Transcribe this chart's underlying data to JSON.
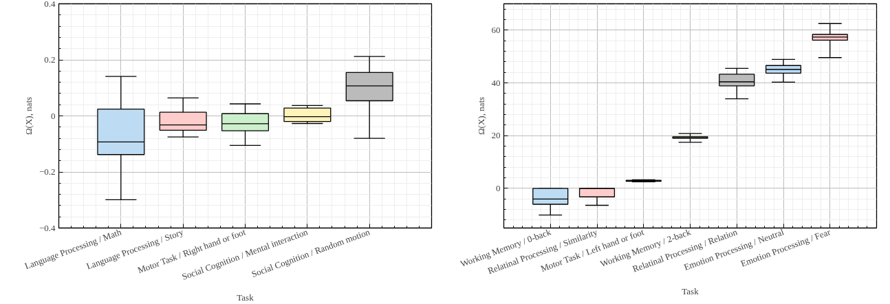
{
  "chart_data": [
    {
      "type": "box",
      "xlabel": "Task",
      "ylabel": "Ω(X), nats",
      "grid": true,
      "categories": [
        "Language Processing / Math",
        "Language Processing / Story",
        "Motor Task / Right hand or foot",
        "Social Cognition / Mental interaction",
        "Social Cognition / Random motion"
      ],
      "colors": [
        "#bddcf3",
        "#ffcccc",
        "#ccf0cc",
        "#fff3bb",
        "#bbbbbb"
      ],
      "boxes": [
        {
          "low": -0.299,
          "q1": -0.138,
          "median": -0.093,
          "q3": 0.024,
          "high": 0.141
        },
        {
          "low": -0.075,
          "q1": -0.051,
          "median": -0.032,
          "q3": 0.013,
          "high": 0.064
        },
        {
          "low": -0.105,
          "q1": -0.053,
          "median": -0.028,
          "q3": 0.008,
          "high": 0.043
        },
        {
          "low": -0.027,
          "q1": -0.02,
          "median": -0.003,
          "q3": 0.028,
          "high": 0.037
        },
        {
          "low": -0.08,
          "q1": 0.054,
          "median": 0.107,
          "q3": 0.155,
          "high": 0.212
        }
      ],
      "ylim": [
        -0.4,
        0.4
      ],
      "yticks": [
        -0.4,
        -0.2,
        0,
        0.2,
        0.4
      ]
    },
    {
      "type": "box",
      "xlabel": "Task",
      "ylabel": "Ω(X), nats",
      "grid": true,
      "categories": [
        "Working Memory / 0-back",
        "Relatinal Processing / Similarity",
        "Motor Task / Left hand or foot",
        "Working Memory / 2-back",
        "Relatinal Processing / Relation",
        "Emotion Processing / Neutral",
        "Emotion Processing / Fear"
      ],
      "colors": [
        "#bddcf3",
        "#ffcccc",
        "#ccf0cc",
        "#fff3bb",
        "#bbbbbb",
        "#bddcf3",
        "#ffcccc"
      ],
      "boxes": [
        {
          "low": -10.1,
          "q1": -6.0,
          "median": -4.0,
          "q3": 0,
          "high": 0
        },
        {
          "low": -6.4,
          "q1": -3.2,
          "median": 0,
          "q3": 0,
          "high": 0
        },
        {
          "low": 2.5,
          "q1": 2.7,
          "median": 2.9,
          "q3": 3.1,
          "high": 3.3
        },
        {
          "low": 17.5,
          "q1": 19.0,
          "median": 19.3,
          "q3": 19.6,
          "high": 20.8
        },
        {
          "low": 34.0,
          "q1": 38.9,
          "median": 40.4,
          "q3": 43.3,
          "high": 45.5
        },
        {
          "low": 40.3,
          "q1": 43.7,
          "median": 45.1,
          "q3": 46.6,
          "high": 48.9
        },
        {
          "low": 49.6,
          "q1": 56.2,
          "median": 57.4,
          "q3": 58.4,
          "high": 62.5
        }
      ],
      "ylim": [
        -15,
        70
      ],
      "yticks": [
        0,
        20,
        40,
        60
      ]
    }
  ]
}
